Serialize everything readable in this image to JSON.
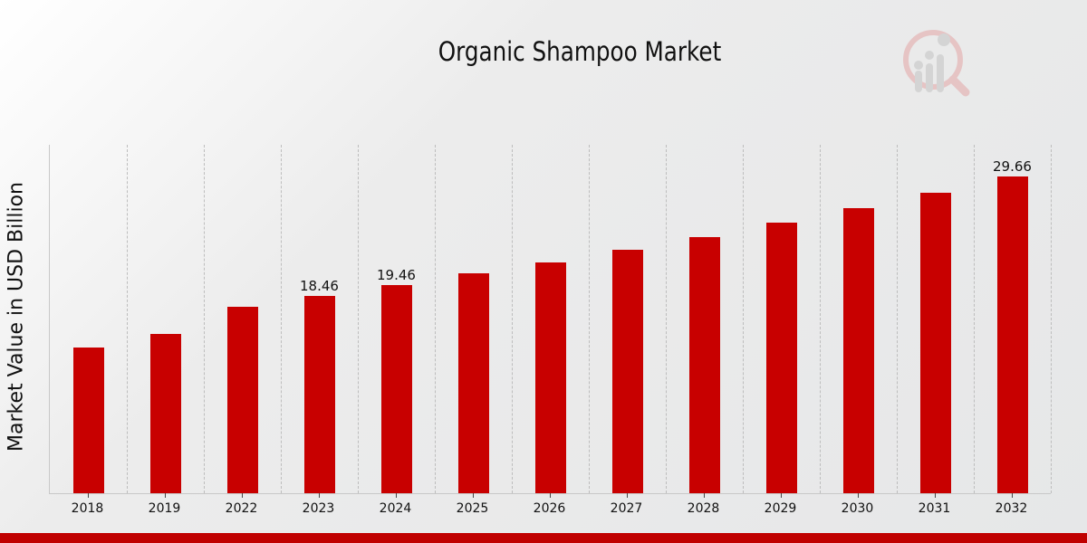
{
  "chart_data": {
    "type": "bar",
    "title": "Organic Shampoo Market",
    "xlabel": "",
    "ylabel": "Market Value in USD Billion",
    "categories": [
      "2018",
      "2019",
      "2022",
      "2023",
      "2024",
      "2025",
      "2026",
      "2027",
      "2028",
      "2029",
      "2030",
      "2031",
      "2032"
    ],
    "values": [
      13.63,
      14.9,
      17.44,
      18.46,
      19.46,
      20.58,
      21.59,
      22.78,
      23.96,
      25.32,
      26.67,
      28.11,
      29.66
    ],
    "data_labels": {
      "2023": "18.46",
      "2024": "19.46",
      "2032": "29.66"
    },
    "ylim": [
      0,
      32.6
    ],
    "grid": "vertical dashed",
    "legend": "none",
    "bar_color": "#c80000"
  },
  "page": {
    "title": "Organic Shampoo Market",
    "ylabel": "Market Value in USD Billion",
    "logo_icon": "magnifier-chart-logo",
    "footer_color": "#c00000"
  }
}
